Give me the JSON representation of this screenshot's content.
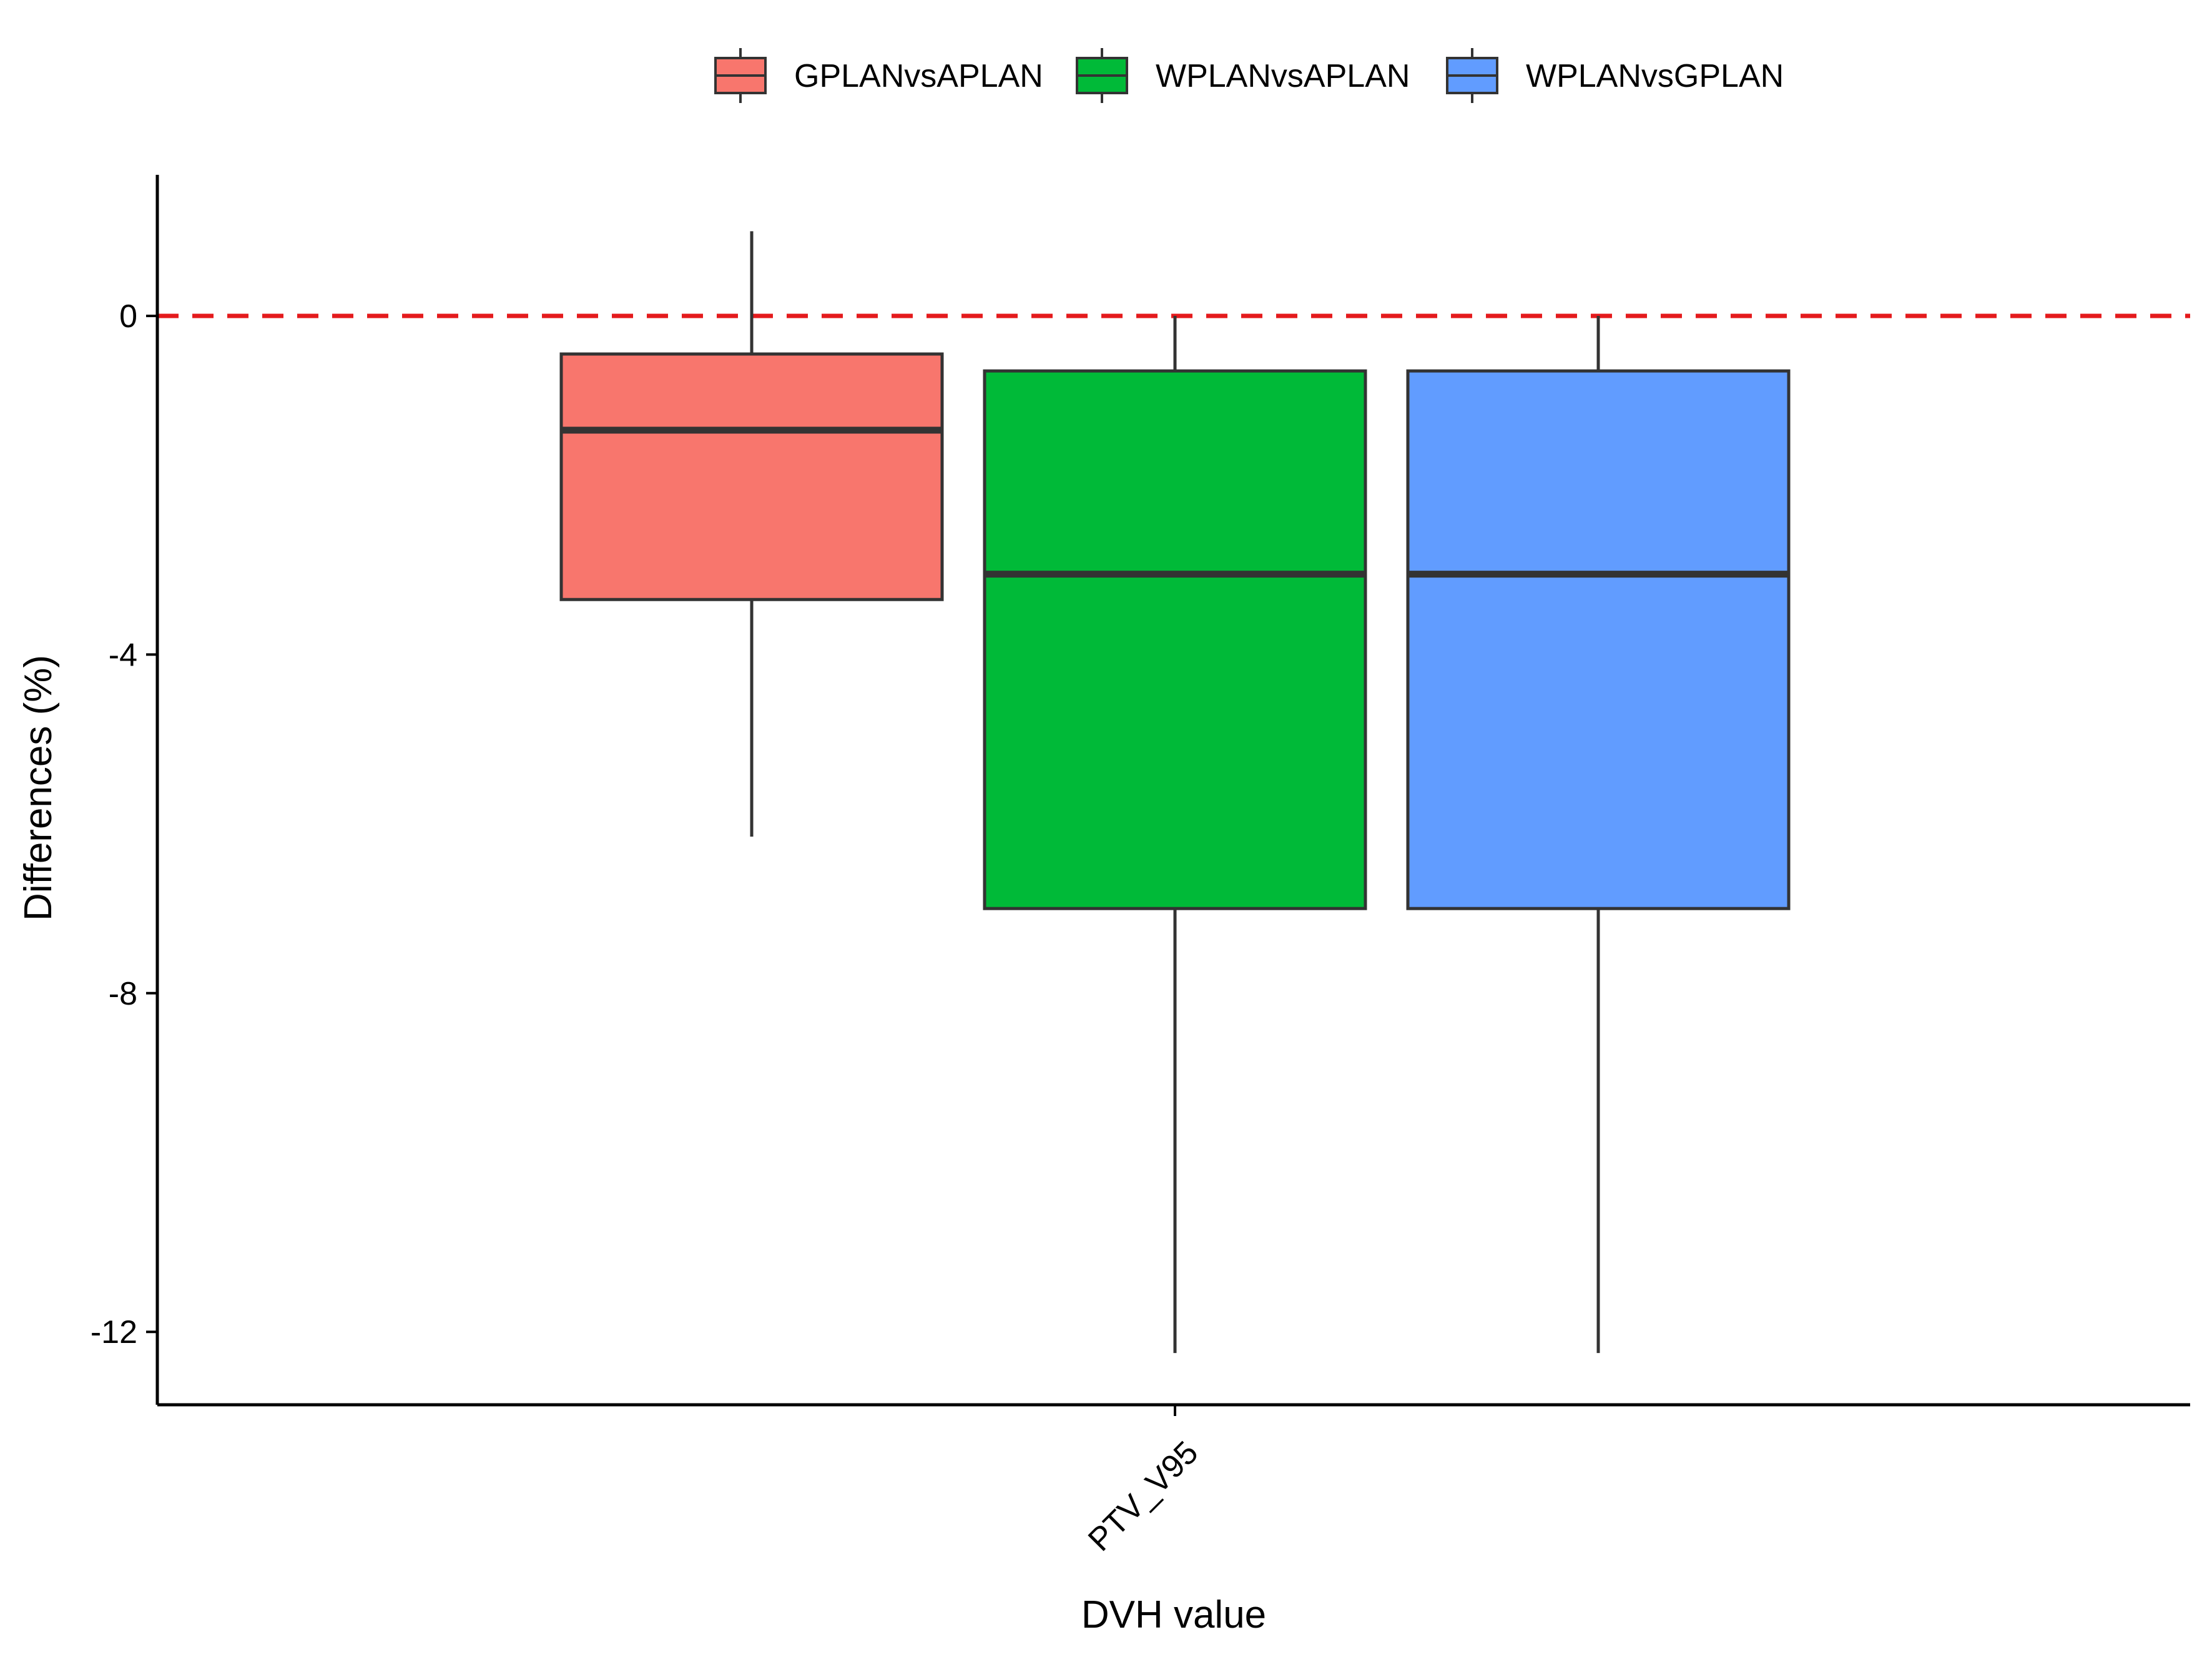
{
  "chart_data": {
    "type": "boxplot",
    "title": "",
    "xlabel": "DVH value",
    "ylabel": "Differences (%)",
    "categories": [
      "PTV_V95"
    ],
    "ylim": [
      -12.9,
      1.7
    ],
    "yticks": [
      0,
      -4,
      -8,
      -12
    ],
    "ytick_labels": [
      "0",
      "-4",
      "-8",
      "-12"
    ],
    "reference_line": {
      "y": 0,
      "color": "#E41A1C",
      "style": "dashed"
    },
    "grid": false,
    "legend_position": "top",
    "series": [
      {
        "name": "GPLANvsAPLAN",
        "color": "#F8766D",
        "category": "PTV_V95",
        "whisker_low": -6.15,
        "q1": -3.35,
        "median": -1.35,
        "q3": -0.45,
        "whisker_high": 1.0
      },
      {
        "name": "WPLANvsAPLAN",
        "color": "#00BA38",
        "category": "PTV_V95",
        "whisker_low": -12.25,
        "q1": -7.0,
        "median": -3.05,
        "q3": -0.65,
        "whisker_high": 0.0
      },
      {
        "name": "WPLANvsGPLAN",
        "color": "#619CFF",
        "category": "PTV_V95",
        "whisker_low": -12.25,
        "q1": -7.0,
        "median": -3.05,
        "q3": -0.65,
        "whisker_high": 0.0
      }
    ]
  }
}
